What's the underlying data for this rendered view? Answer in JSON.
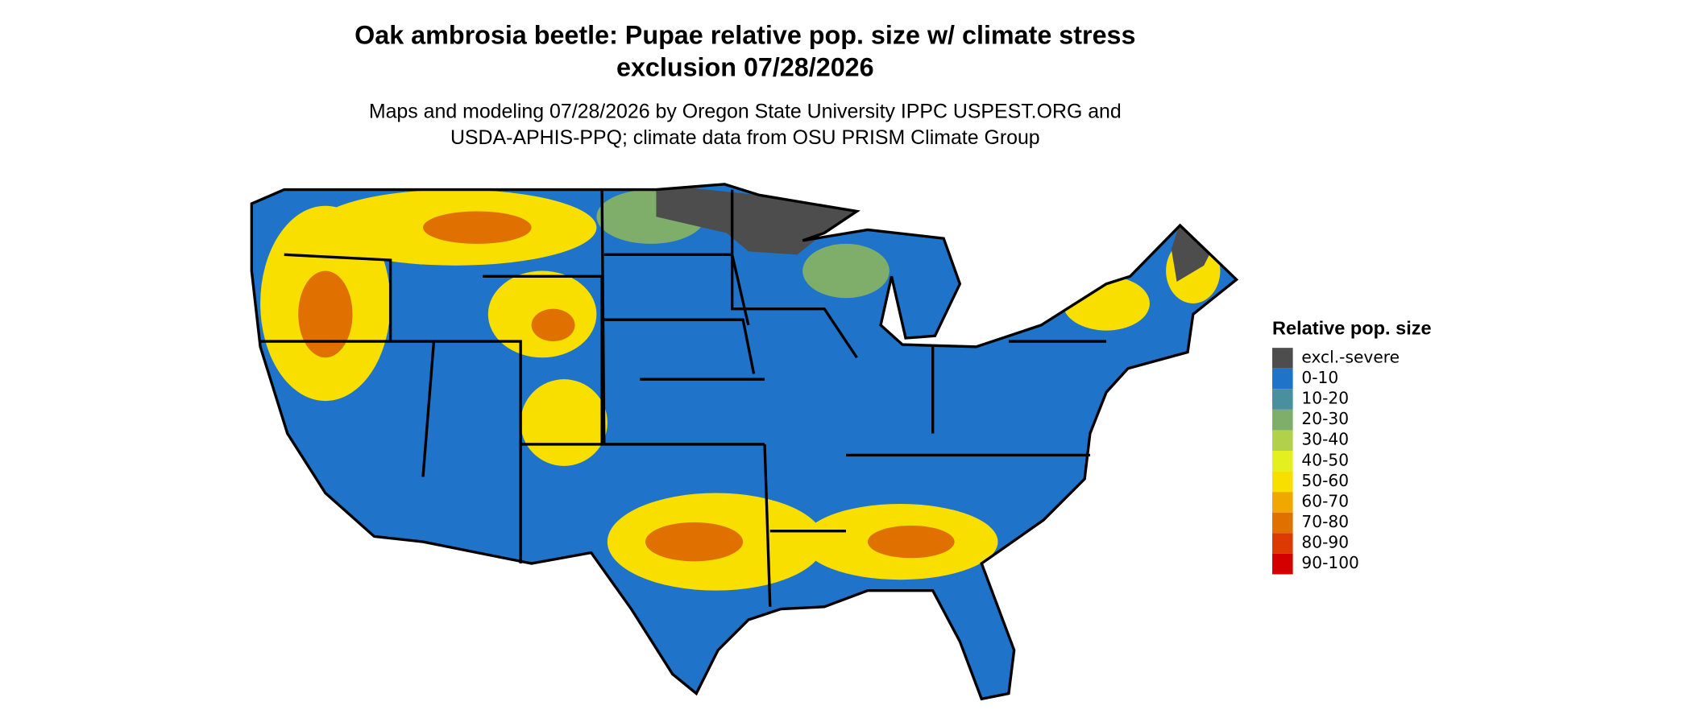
{
  "title": [
    "Oak ambrosia beetle: Pupae relative pop. size w/ climate stress",
    "exclusion 07/28/2026"
  ],
  "subtitle": [
    "Maps and modeling 07/28/2026 by Oregon State University IPPC USPEST.ORG and",
    "USDA-APHIS-PPQ; climate data from OSU PRISM Climate Group"
  ],
  "legend": {
    "title": "Relative pop. size",
    "items": [
      {
        "label": "excl.-severe",
        "color": "#4d4d4d"
      },
      {
        "label": "0-10",
        "color": "#1f74c9"
      },
      {
        "label": "10-20",
        "color": "#4a8f9e"
      },
      {
        "label": "20-30",
        "color": "#7fae6a"
      },
      {
        "label": "30-40",
        "color": "#b2d14a"
      },
      {
        "label": "40-50",
        "color": "#e3ef1e"
      },
      {
        "label": "50-60",
        "color": "#f9df00"
      },
      {
        "label": "60-70",
        "color": "#f0a800"
      },
      {
        "label": "70-80",
        "color": "#e07000"
      },
      {
        "label": "80-90",
        "color": "#dc3a00"
      },
      {
        "label": "90-100",
        "color": "#d40000"
      }
    ]
  }
}
